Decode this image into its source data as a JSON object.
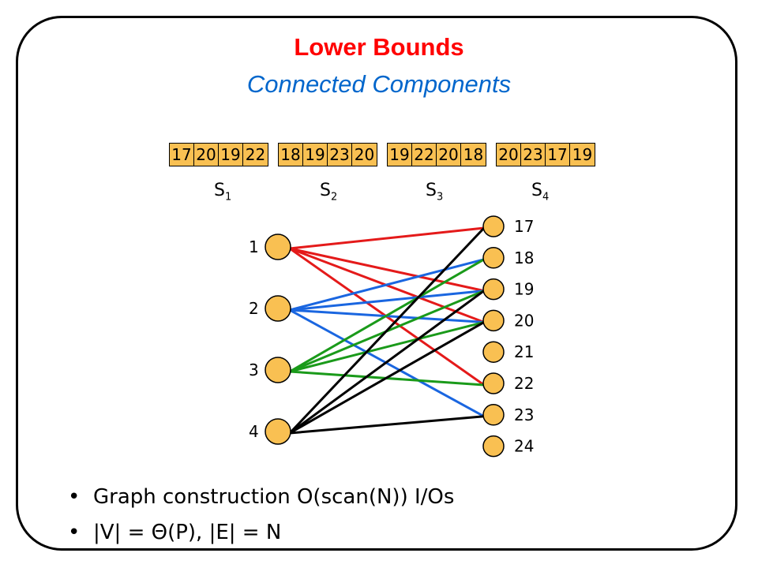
{
  "title": "Lower Bounds",
  "subtitle": "Connected Components",
  "sequences": [
    {
      "values": [
        "17",
        "20",
        "19",
        "22"
      ],
      "label": "S",
      "sub": "1"
    },
    {
      "values": [
        "18",
        "19",
        "23",
        "20"
      ],
      "label": "S",
      "sub": "2"
    },
    {
      "values": [
        "19",
        "22",
        "20",
        "18"
      ],
      "label": "S",
      "sub": "3"
    },
    {
      "values": [
        "20",
        "23",
        "17",
        "19"
      ],
      "label": "S",
      "sub": "4"
    }
  ],
  "left_nodes": [
    "1",
    "2",
    "3",
    "4"
  ],
  "right_nodes": [
    "17",
    "18",
    "19",
    "20",
    "21",
    "22",
    "23",
    "24"
  ],
  "edges": [
    {
      "from": "1",
      "to": "17",
      "color": "#e41a1a"
    },
    {
      "from": "1",
      "to": "20",
      "color": "#e41a1a"
    },
    {
      "from": "1",
      "to": "19",
      "color": "#e41a1a"
    },
    {
      "from": "1",
      "to": "22",
      "color": "#e41a1a"
    },
    {
      "from": "2",
      "to": "18",
      "color": "#1a66e0"
    },
    {
      "from": "2",
      "to": "19",
      "color": "#1a66e0"
    },
    {
      "from": "2",
      "to": "23",
      "color": "#1a66e0"
    },
    {
      "from": "2",
      "to": "20",
      "color": "#1a66e0"
    },
    {
      "from": "3",
      "to": "19",
      "color": "#1a9a1a"
    },
    {
      "from": "3",
      "to": "22",
      "color": "#1a9a1a"
    },
    {
      "from": "3",
      "to": "20",
      "color": "#1a9a1a"
    },
    {
      "from": "3",
      "to": "18",
      "color": "#1a9a1a"
    },
    {
      "from": "4",
      "to": "20",
      "color": "#000000"
    },
    {
      "from": "4",
      "to": "23",
      "color": "#000000"
    },
    {
      "from": "4",
      "to": "17",
      "color": "#000000"
    },
    {
      "from": "4",
      "to": "19",
      "color": "#000000"
    }
  ],
  "node_color": "#f9c052",
  "bullets": [
    "Graph construction O(scan(N)) I/Os",
    "|V| = Θ(P), |E| = N"
  ]
}
